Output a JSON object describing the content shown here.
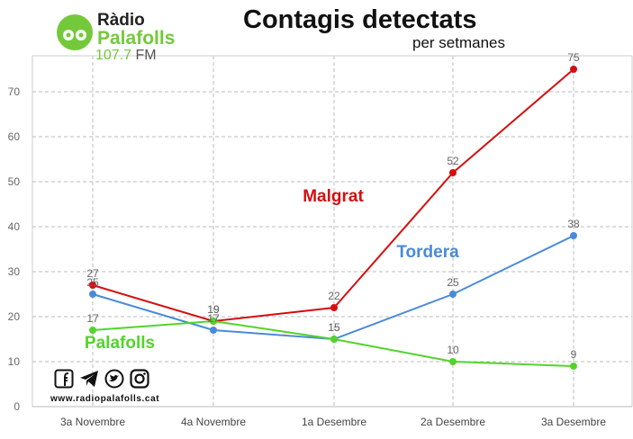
{
  "header": {
    "logo_line1": "Ràdio",
    "logo_line2": "Palafolls",
    "logo_freq": "107.7",
    "logo_fm": "FM",
    "title": "Contagis detectats",
    "subtitle": "per setmanes"
  },
  "footer": {
    "website": "www.radiopalafolls.cat",
    "icons": [
      "facebook-icon",
      "telegram-icon",
      "twitter-icon",
      "instagram-icon"
    ]
  },
  "chart_data": {
    "type": "line",
    "categories": [
      "3a Novembre",
      "4a Novembre",
      "1a Desembre",
      "2a Desembre",
      "3a Desembre"
    ],
    "ylim": [
      0,
      78
    ],
    "yticks": [
      0,
      10,
      20,
      30,
      40,
      50,
      60,
      70
    ],
    "grid": true,
    "series": [
      {
        "name": "Malgrat",
        "color": "#d40f0f",
        "values": [
          27,
          19,
          22,
          52,
          75
        ]
      },
      {
        "name": "Tordera",
        "color": "#4a8ad8",
        "values": [
          25,
          17,
          15,
          25,
          38
        ]
      },
      {
        "name": "Palafolls",
        "color": "#52d42b",
        "values": [
          17,
          19,
          15,
          10,
          9
        ]
      }
    ]
  }
}
